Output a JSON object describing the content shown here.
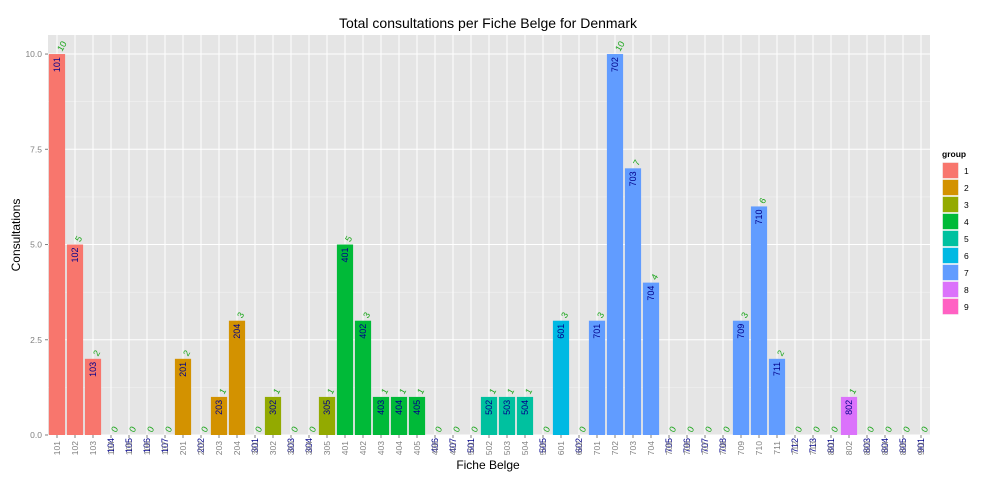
{
  "chart_data": {
    "type": "bar",
    "title": "Total consultations per Fiche Belge for Denmark",
    "xlabel": "Fiche Belge",
    "ylabel": "Consultations",
    "ylim": [
      0,
      10.5
    ],
    "yticks": [
      0,
      2.5,
      5,
      7.5,
      10
    ],
    "ytick_labels": [
      "0.0",
      "2.5",
      "5.0",
      "7.5",
      "10.0"
    ],
    "categories": [
      "101",
      "102",
      "103",
      "104",
      "105",
      "106",
      "107",
      "201",
      "202",
      "203",
      "204",
      "301",
      "302",
      "303",
      "304",
      "305",
      "401",
      "402",
      "403",
      "404",
      "405",
      "406",
      "407",
      "501",
      "502",
      "503",
      "504",
      "505",
      "601",
      "602",
      "701",
      "702",
      "703",
      "704",
      "705",
      "706",
      "707",
      "708",
      "709",
      "710",
      "711",
      "712",
      "713",
      "801",
      "802",
      "803",
      "804",
      "805",
      "901"
    ],
    "values": [
      10,
      5,
      2,
      0,
      0,
      0,
      0,
      2,
      0,
      1,
      3,
      0,
      1,
      0,
      0,
      1,
      5,
      3,
      1,
      1,
      1,
      0,
      0,
      0,
      1,
      1,
      1,
      0,
      3,
      0,
      3,
      10,
      7,
      4,
      0,
      0,
      0,
      0,
      3,
      6,
      2,
      0,
      0,
      0,
      1,
      0,
      0,
      0,
      0
    ],
    "groups": [
      1,
      1,
      1,
      1,
      1,
      1,
      1,
      2,
      2,
      2,
      2,
      3,
      3,
      3,
      3,
      3,
      4,
      4,
      4,
      4,
      4,
      4,
      4,
      5,
      5,
      5,
      5,
      5,
      6,
      6,
      7,
      7,
      7,
      7,
      7,
      7,
      7,
      7,
      7,
      7,
      7,
      7,
      7,
      8,
      8,
      8,
      8,
      8,
      9
    ],
    "legend": {
      "title": "group",
      "position": "right",
      "entries": [
        {
          "label": "1",
          "color": "#f8766d"
        },
        {
          "label": "2",
          "color": "#d39200"
        },
        {
          "label": "3",
          "color": "#93aa00"
        },
        {
          "label": "4",
          "color": "#00ba38"
        },
        {
          "label": "5",
          "color": "#00c19f"
        },
        {
          "label": "6",
          "color": "#00b9e3"
        },
        {
          "label": "7",
          "color": "#619cff"
        },
        {
          "label": "8",
          "color": "#db72fb"
        },
        {
          "label": "9",
          "color": "#ff61c3"
        }
      ]
    },
    "colors": {
      "panel_background": "#e5e5e5",
      "grid_major": "#ffffff",
      "grid_minor": "#f2f2f2",
      "bar_label": "#00008b",
      "value_label": "#1aa51a"
    },
    "grid": true
  }
}
